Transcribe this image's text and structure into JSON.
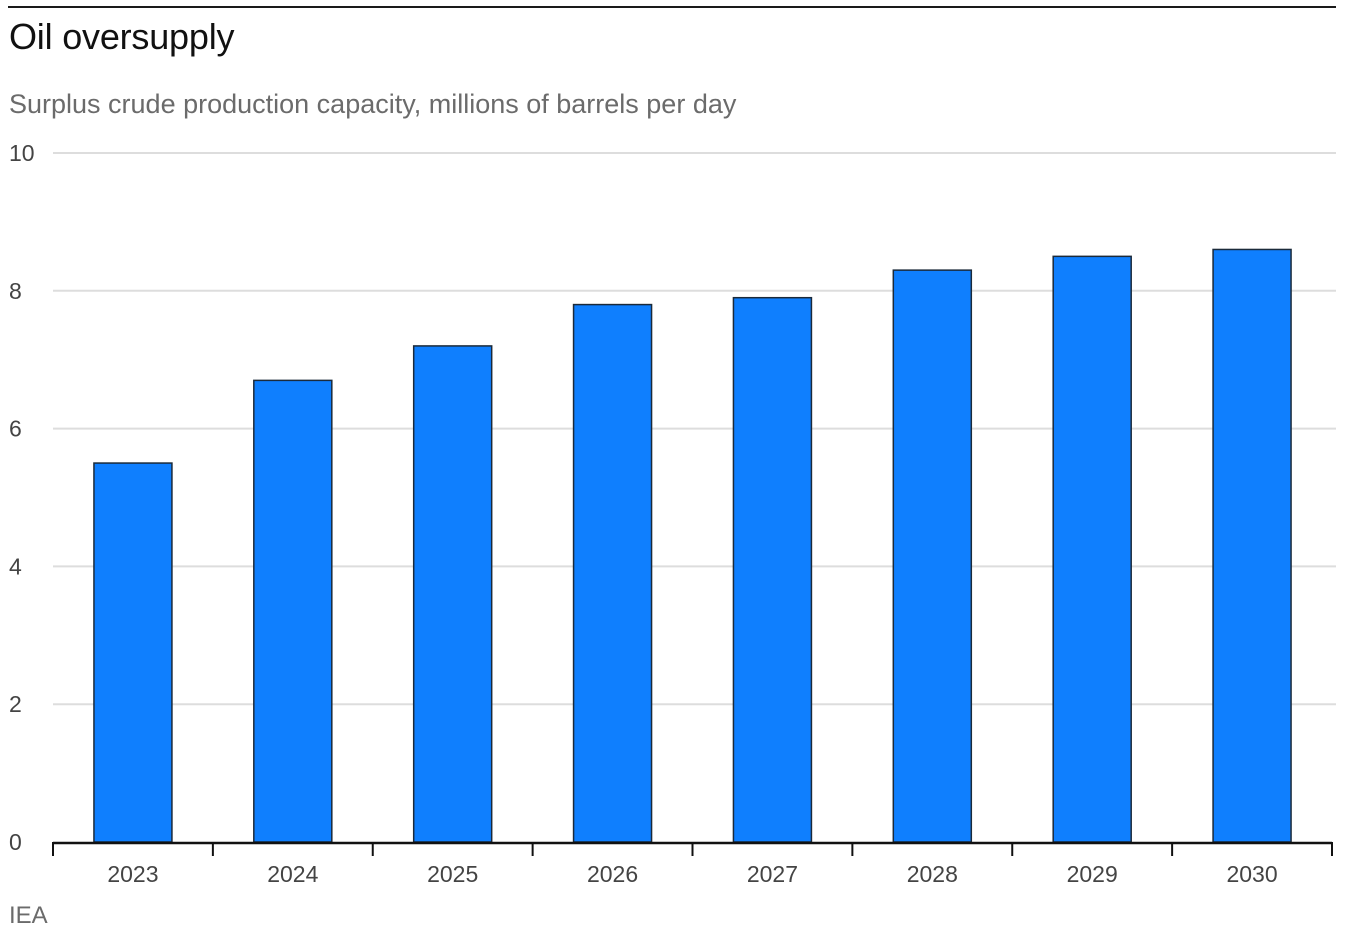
{
  "chart_data": {
    "type": "bar",
    "title": "Oil oversupply",
    "subtitle": "Surplus crude production capacity, millions of barrels per day",
    "source": "IEA",
    "categories": [
      "2023",
      "2024",
      "2025",
      "2026",
      "2027",
      "2028",
      "2029",
      "2030"
    ],
    "values": [
      5.5,
      6.7,
      7.2,
      7.8,
      7.9,
      8.3,
      8.5,
      8.6
    ],
    "ylim": [
      0,
      10
    ],
    "yticks": [
      "0",
      "2",
      "4",
      "6",
      "8",
      "10"
    ],
    "grid": true,
    "legend": "none",
    "colors": {
      "bar_fill": "#0f7ffe",
      "bar_stroke": "#1b2a3a",
      "gridline": "#dddddd",
      "axis": "#111111"
    }
  }
}
